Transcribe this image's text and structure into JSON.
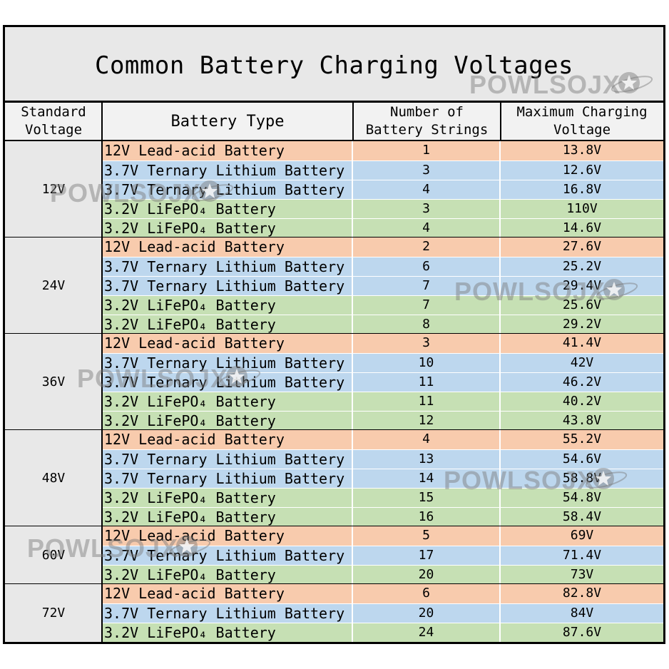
{
  "title": "Common Battery Charging Voltages",
  "headers": {
    "standard_voltage": "Standard\nVoltage",
    "battery_type": "Battery Type",
    "strings": "Number of\nBattery Strings",
    "max_voltage": "Maximum Charging\nVoltage"
  },
  "colors": {
    "lead_acid": "#f8cbad",
    "ternary": "#bdd7ee",
    "lifepo4": "#c6e0b4"
  },
  "groups": [
    {
      "label": "12V",
      "rows": [
        {
          "type": "12V Lead-acid Battery",
          "kind": "lead_acid",
          "strings": "1",
          "voltage": "13.8V"
        },
        {
          "type": "3.7V Ternary Lithium Battery",
          "kind": "ternary",
          "strings": "3",
          "voltage": "12.6V"
        },
        {
          "type": "3.7V Ternary Lithium Battery",
          "kind": "ternary",
          "strings": "4",
          "voltage": "16.8V"
        },
        {
          "type": "3.2V LiFePO₄ Battery",
          "kind": "lifepo4",
          "strings": "3",
          "voltage": "110V"
        },
        {
          "type": "3.2V LiFePO₄ Battery",
          "kind": "lifepo4",
          "strings": "4",
          "voltage": "14.6V"
        }
      ]
    },
    {
      "label": "24V",
      "rows": [
        {
          "type": "12V Lead-acid Battery",
          "kind": "lead_acid",
          "strings": "2",
          "voltage": "27.6V"
        },
        {
          "type": "3.7V Ternary Lithium Battery",
          "kind": "ternary",
          "strings": "6",
          "voltage": "25.2V"
        },
        {
          "type": "3.7V Ternary Lithium Battery",
          "kind": "ternary",
          "strings": "7",
          "voltage": "29.4V"
        },
        {
          "type": "3.2V LiFePO₄ Battery",
          "kind": "lifepo4",
          "strings": "7",
          "voltage": "25.6V"
        },
        {
          "type": "3.2V LiFePO₄ Battery",
          "kind": "lifepo4",
          "strings": "8",
          "voltage": "29.2V"
        }
      ]
    },
    {
      "label": "36V",
      "rows": [
        {
          "type": "12V Lead-acid Battery",
          "kind": "lead_acid",
          "strings": "3",
          "voltage": "41.4V"
        },
        {
          "type": "3.7V Ternary Lithium Battery",
          "kind": "ternary",
          "strings": "10",
          "voltage": "42V"
        },
        {
          "type": "3.7V Ternary Lithium Battery",
          "kind": "ternary",
          "strings": "11",
          "voltage": "46.2V"
        },
        {
          "type": "3.2V LiFePO₄ Battery",
          "kind": "lifepo4",
          "strings": "11",
          "voltage": "40.2V"
        },
        {
          "type": "3.2V LiFePO₄ Battery",
          "kind": "lifepo4",
          "strings": "12",
          "voltage": "43.8V"
        }
      ]
    },
    {
      "label": "48V",
      "rows": [
        {
          "type": "12V Lead-acid Battery",
          "kind": "lead_acid",
          "strings": "4",
          "voltage": "55.2V"
        },
        {
          "type": "3.7V Ternary Lithium Battery",
          "kind": "ternary",
          "strings": "13",
          "voltage": "54.6V"
        },
        {
          "type": "3.7V Ternary Lithium Battery",
          "kind": "ternary",
          "strings": "14",
          "voltage": "58.8V"
        },
        {
          "type": "3.2V LiFePO₄ Battery",
          "kind": "lifepo4",
          "strings": "15",
          "voltage": "54.8V"
        },
        {
          "type": "3.2V LiFePO₄ Battery",
          "kind": "lifepo4",
          "strings": "16",
          "voltage": "58.4V"
        }
      ]
    },
    {
      "label": "60V",
      "rows": [
        {
          "type": "12V Lead-acid Battery",
          "kind": "lead_acid",
          "strings": "5",
          "voltage": "69V"
        },
        {
          "type": "3.7V Ternary Lithium Battery",
          "kind": "ternary",
          "strings": "17",
          "voltage": "71.4V"
        },
        {
          "type": "3.2V LiFePO₄ Battery",
          "kind": "lifepo4",
          "strings": "20",
          "voltage": "73V"
        }
      ]
    },
    {
      "label": "72V",
      "rows": [
        {
          "type": "12V Lead-acid Battery",
          "kind": "lead_acid",
          "strings": "6",
          "voltage": "82.8V"
        },
        {
          "type": "3.7V Ternary Lithium Battery",
          "kind": "ternary",
          "strings": "20",
          "voltage": "84V"
        },
        {
          "type": "3.2V LiFePO₄ Battery",
          "kind": "lifepo4",
          "strings": "24",
          "voltage": "87.6V"
        }
      ]
    }
  ],
  "watermark": "POWLSOJX"
}
